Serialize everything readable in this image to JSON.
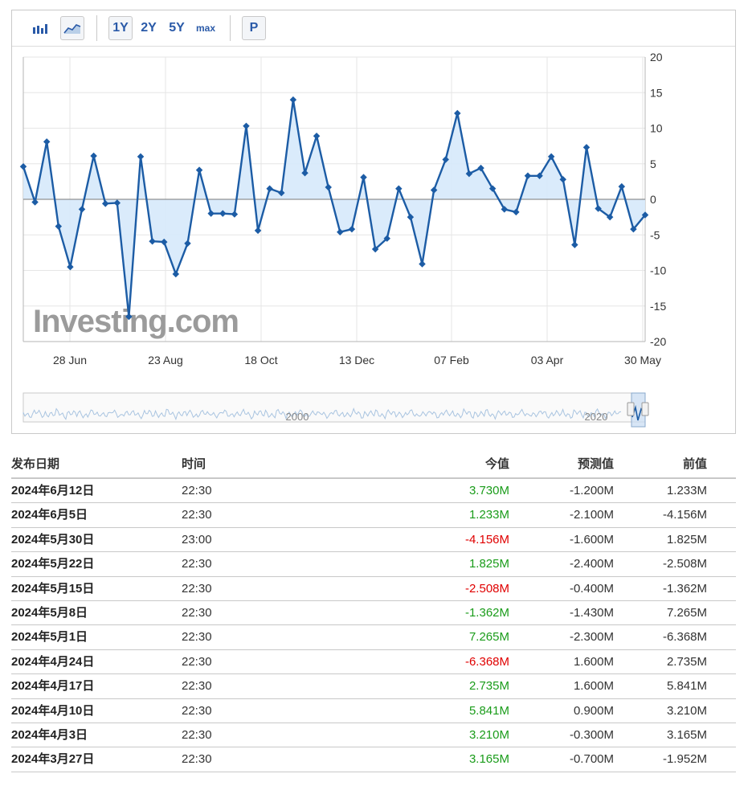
{
  "toolbar": {
    "bar_icon": "bar-chart-icon",
    "area_icon": "area-chart-icon",
    "ranges": [
      "1Y",
      "2Y",
      "5Y",
      "max"
    ],
    "p_label": "P"
  },
  "chart_data": {
    "type": "area",
    "x_labels": [
      "28 Jun",
      "23 Aug",
      "18 Oct",
      "13 Dec",
      "07 Feb",
      "03 Apr",
      "30 May"
    ],
    "y_ticks": [
      20,
      15,
      10,
      5,
      0,
      -5,
      -10,
      -15,
      -20
    ],
    "ylim": [
      -20,
      20
    ],
    "values": [
      4.6,
      -0.4,
      8.1,
      -3.8,
      -9.5,
      -1.4,
      6.1,
      -0.6,
      -0.5,
      -16.5,
      6.0,
      -5.9,
      -6.0,
      -10.5,
      -6.2,
      4.1,
      -2.0,
      -2.0,
      -2.1,
      10.3,
      -4.4,
      1.5,
      0.9,
      14.0,
      3.7,
      8.9,
      1.7,
      -4.6,
      -4.2,
      3.1,
      -7.0,
      -5.5,
      1.5,
      -2.5,
      -9.1,
      1.3,
      5.6,
      12.1,
      3.6,
      4.4,
      1.5,
      -1.4,
      -1.8,
      3.3,
      3.3,
      6.0,
      2.8,
      -6.4,
      7.3,
      -1.3,
      -2.5,
      1.8,
      -4.2,
      -2.2
    ],
    "line_color": "#1c5ca5",
    "fill_color": "#d6e9fb",
    "watermark": "Investing.com",
    "navigator_labels": [
      "2000",
      "2020"
    ]
  },
  "table": {
    "headers": [
      "发布日期",
      "时间",
      "今值",
      "预测值",
      "前值"
    ],
    "rows": [
      {
        "date": "2024年6月12日",
        "time": "22:30",
        "actual": "3.730M",
        "sign": "pos",
        "forecast": "-1.200M",
        "previous": "1.233M"
      },
      {
        "date": "2024年6月5日",
        "time": "22:30",
        "actual": "1.233M",
        "sign": "pos",
        "forecast": "-2.100M",
        "previous": "-4.156M"
      },
      {
        "date": "2024年5月30日",
        "time": "23:00",
        "actual": "-4.156M",
        "sign": "neg",
        "forecast": "-1.600M",
        "previous": "1.825M"
      },
      {
        "date": "2024年5月22日",
        "time": "22:30",
        "actual": "1.825M",
        "sign": "pos",
        "forecast": "-2.400M",
        "previous": "-2.508M"
      },
      {
        "date": "2024年5月15日",
        "time": "22:30",
        "actual": "-2.508M",
        "sign": "neg",
        "forecast": "-0.400M",
        "previous": "-1.362M"
      },
      {
        "date": "2024年5月8日",
        "time": "22:30",
        "actual": "-1.362M",
        "sign": "pos",
        "forecast": "-1.430M",
        "previous": "7.265M"
      },
      {
        "date": "2024年5月1日",
        "time": "22:30",
        "actual": "7.265M",
        "sign": "pos",
        "forecast": "-2.300M",
        "previous": "-6.368M"
      },
      {
        "date": "2024年4月24日",
        "time": "22:30",
        "actual": "-6.368M",
        "sign": "neg",
        "forecast": "1.600M",
        "previous": "2.735M"
      },
      {
        "date": "2024年4月17日",
        "time": "22:30",
        "actual": "2.735M",
        "sign": "pos",
        "forecast": "1.600M",
        "previous": "5.841M"
      },
      {
        "date": "2024年4月10日",
        "time": "22:30",
        "actual": "5.841M",
        "sign": "pos",
        "forecast": "0.900M",
        "previous": "3.210M"
      },
      {
        "date": "2024年4月3日",
        "time": "22:30",
        "actual": "3.210M",
        "sign": "pos",
        "forecast": "-0.300M",
        "previous": "3.165M"
      },
      {
        "date": "2024年3月27日",
        "time": "22:30",
        "actual": "3.165M",
        "sign": "pos",
        "forecast": "-0.700M",
        "previous": "-1.952M"
      }
    ]
  }
}
